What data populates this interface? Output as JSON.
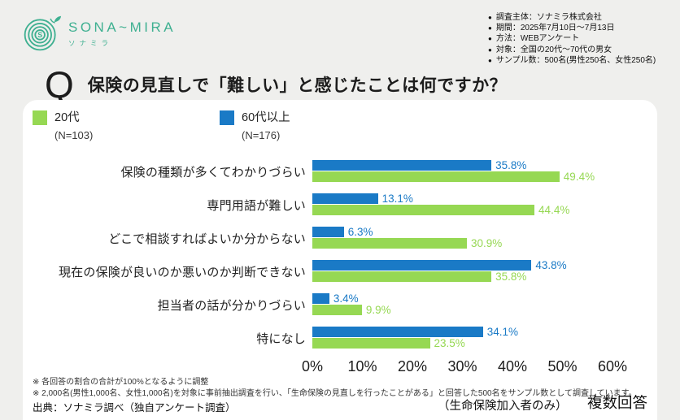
{
  "brand": {
    "name": "SONA~MIRA",
    "kana": "ソナミラ",
    "color": "#3fb091"
  },
  "survey_meta": {
    "bullet": "●",
    "items": [
      "調査主体：ソナミラ株式会社",
      "期間：2025年7月10日～7月13日",
      "方法：WEBアンケート",
      "対象：全国の20代～70代の男女",
      "サンプル数：500名(男性250名、女性250名)"
    ]
  },
  "question": {
    "prefix": "Q",
    "text": "保険の見直しで「難しい」と感じたことは何ですか？"
  },
  "legend": [
    {
      "label": "20代",
      "n": "(N=103)",
      "color": "#96d853"
    },
    {
      "label": "60代以上",
      "n": "(N=176)",
      "color": "#1a7ac6"
    }
  ],
  "chart_data": {
    "type": "bar",
    "orientation": "horizontal",
    "title": "保険の見直しで「難しい」と感じたことは何ですか？",
    "categories": [
      "保険の種類が多くてわかりづらい",
      "専門用語が難しい",
      "どこで相談すればよいか分からない",
      "現在の保険が良いのか悪いのか判断できない",
      "担当者の話が分かりづらい",
      "特になし"
    ],
    "series": [
      {
        "key": "60plus",
        "name": "60代以上",
        "n": "(N=176)",
        "color": "#1a7ac6",
        "values": [
          35.8,
          13.1,
          6.3,
          43.8,
          3.4,
          34.1
        ]
      },
      {
        "key": "20s",
        "name": "20代",
        "n": "(N=103)",
        "color": "#96d853",
        "values": [
          49.4,
          44.4,
          30.9,
          35.8,
          9.9,
          23.5
        ]
      }
    ],
    "value_suffix": "%",
    "x_ticks": [
      "0%",
      "10%",
      "20%",
      "30%",
      "40%",
      "50%",
      "60%"
    ],
    "xlim": [
      0,
      60
    ],
    "grid": false,
    "legend_position": "top-left"
  },
  "footnotes": [
    "※ 各回答の割合の合計が100%となるように調整",
    "※ 2,000名(男性1,000名、女性1,000名)を対象に事前抽出調査を行い、「生命保険の見直しを行ったことがある」と回答した500名をサンプル数として調査しています。"
  ],
  "source": "出典：ソナミラ調べ（独自アンケート調査）",
  "notes": {
    "scope": "（生命保険加入者のみ）",
    "answer_type": "複数回答"
  }
}
